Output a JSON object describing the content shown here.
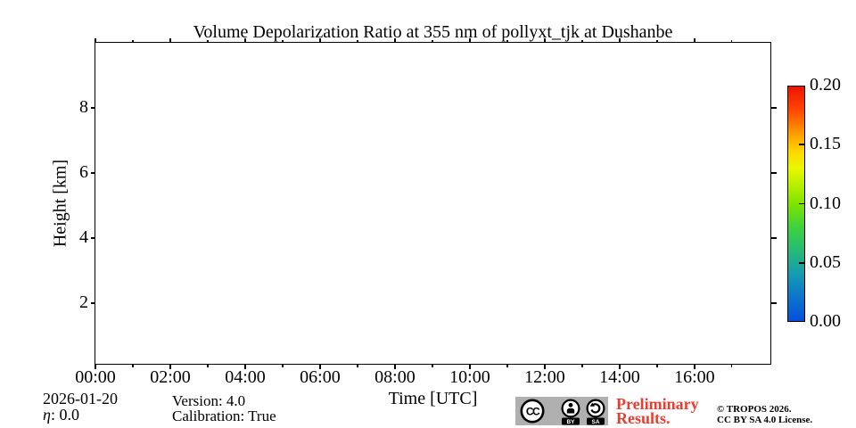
{
  "chart_data": {
    "type": "heatmap",
    "title": "Volume Depolarization Ratio at 355 nm of pollyxt_tjk at Dushanbe",
    "xlabel": "Time [UTC]",
    "ylabel": "Height [km]",
    "x_axis": {
      "range_hours": [
        0,
        18.05
      ],
      "major_ticks": [
        {
          "hour": 0,
          "label": "00:00"
        },
        {
          "hour": 2,
          "label": "02:00"
        },
        {
          "hour": 4,
          "label": "04:00"
        },
        {
          "hour": 6,
          "label": "06:00"
        },
        {
          "hour": 8,
          "label": "08:00"
        },
        {
          "hour": 10,
          "label": "10:00"
        },
        {
          "hour": 12,
          "label": "12:00"
        },
        {
          "hour": 14,
          "label": "14:00"
        },
        {
          "hour": 16,
          "label": "16:00"
        }
      ],
      "minor_tick_hours": [
        1,
        3,
        5,
        7,
        9,
        11,
        13,
        15,
        17
      ]
    },
    "y_axis": {
      "range_km": [
        0.11,
        10.0
      ],
      "major_ticks": [
        {
          "km": 2,
          "label": "2"
        },
        {
          "km": 4,
          "label": "4"
        },
        {
          "km": 6,
          "label": "6"
        },
        {
          "km": 8,
          "label": "8"
        }
      ]
    },
    "values": [],
    "colorbar": {
      "min": 0.0,
      "max": 0.2,
      "tick_values": [
        0.0,
        0.05,
        0.1,
        0.15,
        0.2
      ],
      "tick_labels": [
        "0.00",
        "0.05",
        "0.10",
        "0.15",
        "0.20"
      ],
      "inner_tick_values": [
        0.05,
        0.1,
        0.15
      ],
      "gradient_stops": [
        {
          "at": 0.0,
          "color": "#0750d8"
        },
        {
          "at": 0.1,
          "color": "#0c74cc"
        },
        {
          "at": 0.2,
          "color": "#169cb0"
        },
        {
          "at": 0.3,
          "color": "#26ba77"
        },
        {
          "at": 0.4,
          "color": "#3fd13d"
        },
        {
          "at": 0.5,
          "color": "#7fe400"
        },
        {
          "at": 0.58,
          "color": "#b8ef00"
        },
        {
          "at": 0.65,
          "color": "#e9f800"
        },
        {
          "at": 0.72,
          "color": "#ffd800"
        },
        {
          "at": 0.8,
          "color": "#ff9c00"
        },
        {
          "at": 0.9,
          "color": "#ff4600"
        },
        {
          "at": 1.0,
          "color": "#ee1300"
        }
      ]
    }
  },
  "footer": {
    "date": "2026-01-20",
    "eta_symbol": "η",
    "eta_value": ": 0.0",
    "version": "Version: 4.0",
    "calibration": "Calibration: True",
    "preliminary_line1": "Preliminary",
    "preliminary_line2": "Results.",
    "preliminary_color": "#ef3b2d",
    "copyright": "© TROPOS 2026.",
    "license": "CC BY SA 4.0 License.",
    "cc_badge": {
      "cc_label": "CC",
      "by_label": "BY",
      "sa_label": "SA",
      "background": "#b0b0b0"
    }
  }
}
